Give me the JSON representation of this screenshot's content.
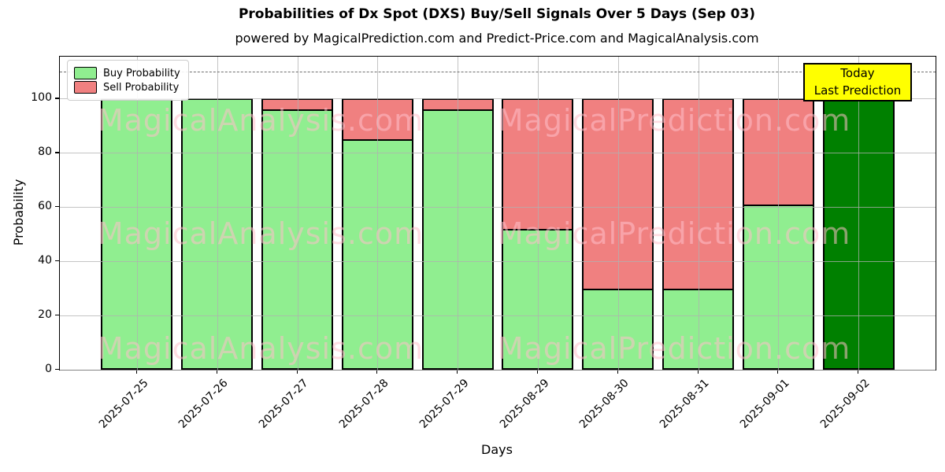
{
  "title": "Probabilities of Dx Spot (DXS) Buy/Sell Signals Over 5 Days (Sep 03)",
  "subtitle": "powered by MagicalPrediction.com and Predict-Price.com and MagicalAnalysis.com",
  "chart_data": {
    "type": "bar",
    "stacked": true,
    "title": "Probabilities of Dx Spot (DXS) Buy/Sell Signals Over 5 Days (Sep 03)",
    "xlabel": "Days",
    "ylabel": "Probability",
    "categories": [
      "2025-07-25",
      "2025-07-26",
      "2025-07-27",
      "2025-07-28",
      "2025-07-29",
      "2025-08-29",
      "2025-08-30",
      "2025-08-31",
      "2025-09-01",
      "2025-09-02"
    ],
    "series": [
      {
        "name": "Buy Probability",
        "color": "#90EE90",
        "values": [
          100,
          100,
          96,
          85,
          96,
          52,
          30,
          30,
          61,
          100
        ]
      },
      {
        "name": "Sell Probability",
        "color": "#F08080",
        "values": [
          0,
          0,
          4,
          15,
          4,
          48,
          70,
          70,
          39,
          0
        ]
      }
    ],
    "today_bar": {
      "index": 9,
      "color": "#008000",
      "label_line1": "Today",
      "label_line2": "Last Prediction"
    },
    "yticks": [
      0,
      20,
      40,
      60,
      80,
      100
    ],
    "ylim": [
      0,
      115.5
    ],
    "dashed_line_y": 110,
    "grid": true,
    "legend_position": "upper-left",
    "bar_edge_color": "#000000"
  },
  "legend": {
    "items": [
      {
        "label": "Buy Probability",
        "color": "#90EE90"
      },
      {
        "label": "Sell Probability",
        "color": "#F08080"
      }
    ]
  },
  "annotation": {
    "line1": "Today",
    "line2": "Last Prediction",
    "bg_color": "#FFFF00"
  },
  "watermarks": {
    "left_text": "MagicalAnalysis.com",
    "right_text": "MagicalPrediction.com"
  },
  "colors": {
    "grid": "#b0b0b0",
    "dashed_line": "#6e6e6e",
    "watermark": "#FFC0CB",
    "today_bar": "#008000",
    "annotation_bg": "#FFFF00"
  }
}
